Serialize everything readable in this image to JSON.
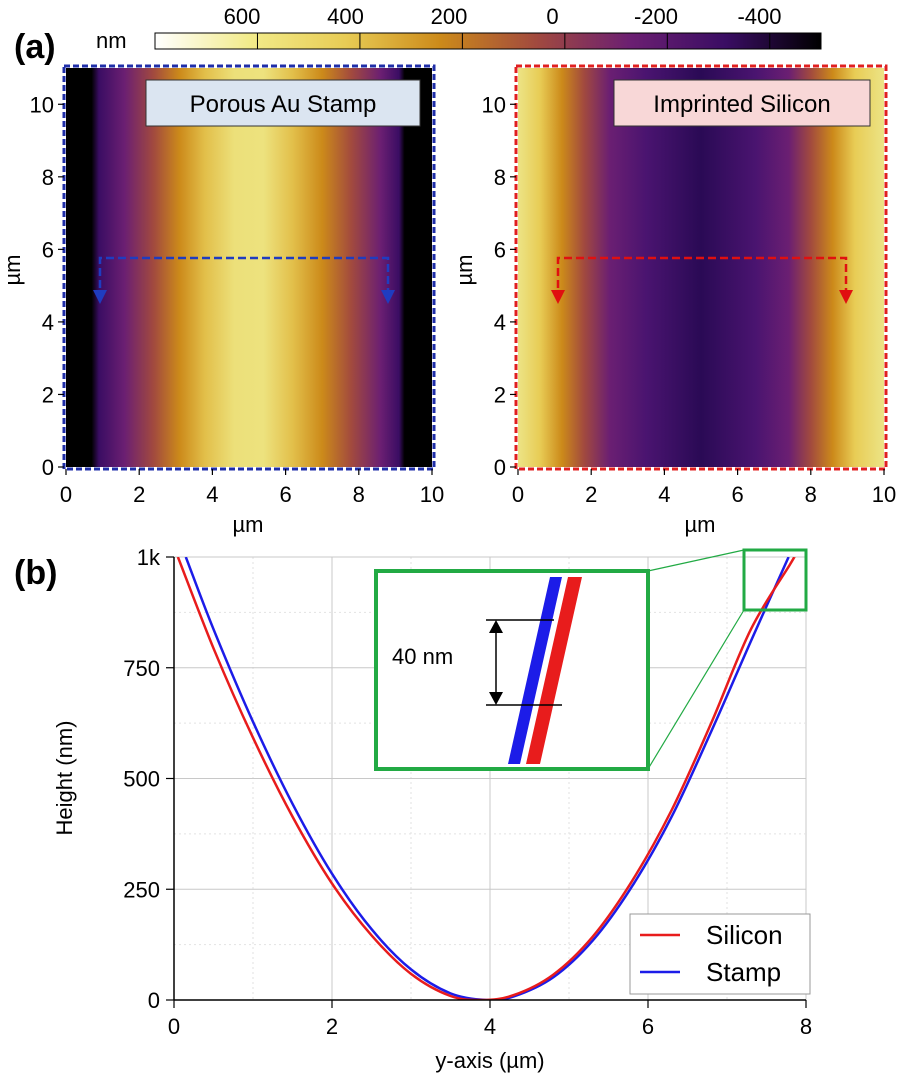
{
  "panel_a": {
    "label": "(a)",
    "colorbar": {
      "unit": "nm",
      "ticks": [
        "600",
        "400",
        "200",
        "0",
        "-200",
        "-400"
      ],
      "colormap": [
        "#ffffff",
        "#f2eb8a",
        "#e8cc55",
        "#cc8a1a",
        "#a24a3e",
        "#6b1f72",
        "#3a0d63",
        "#000000"
      ]
    },
    "maps": [
      {
        "title": "Porous Au Stamp",
        "title_bg": "#dbe5f1",
        "border_color": "#1f2ea8",
        "arrow_color": "#1f3cc0",
        "xlabel": "µm",
        "ylabel": "µm",
        "xticks": [
          "0",
          "2",
          "4",
          "6",
          "8",
          "10"
        ],
        "yticks": [
          "0",
          "2",
          "4",
          "6",
          "8",
          "10"
        ],
        "profile_stops": [
          [
            0.0,
            "#000000"
          ],
          [
            0.07,
            "#000000"
          ],
          [
            0.09,
            "#3a0d63"
          ],
          [
            0.16,
            "#6b1f72"
          ],
          [
            0.24,
            "#a24a3e"
          ],
          [
            0.31,
            "#cc8a1a"
          ],
          [
            0.38,
            "#e2bf4a"
          ],
          [
            0.46,
            "#ece07a"
          ],
          [
            0.54,
            "#ede27e"
          ],
          [
            0.62,
            "#e2bf4a"
          ],
          [
            0.7,
            "#cc8a1a"
          ],
          [
            0.78,
            "#a24a3e"
          ],
          [
            0.86,
            "#6b1f72"
          ],
          [
            0.91,
            "#3a0d63"
          ],
          [
            0.925,
            "#000000"
          ],
          [
            1.0,
            "#000000"
          ]
        ]
      },
      {
        "title": "Imprinted Silicon",
        "title_bg": "#f8d7d7",
        "border_color": "#e02020",
        "arrow_color": "#e01010",
        "xlabel": "µm",
        "ylabel": "µm",
        "xticks": [
          "0",
          "2",
          "4",
          "6",
          "8",
          "10"
        ],
        "yticks": [
          "0",
          "2",
          "4",
          "6",
          "8",
          "10"
        ],
        "profile_stops": [
          [
            0.0,
            "#ece486"
          ],
          [
            0.06,
            "#e8cc55"
          ],
          [
            0.12,
            "#cc8a1a"
          ],
          [
            0.18,
            "#a24a3e"
          ],
          [
            0.25,
            "#6b1f72"
          ],
          [
            0.35,
            "#4a1470"
          ],
          [
            0.5,
            "#2a0a55"
          ],
          [
            0.65,
            "#4a1470"
          ],
          [
            0.74,
            "#6b1f72"
          ],
          [
            0.8,
            "#a24a3e"
          ],
          [
            0.86,
            "#cc8a1a"
          ],
          [
            0.92,
            "#e8cc55"
          ],
          [
            1.0,
            "#ece486"
          ]
        ]
      }
    ]
  },
  "panel_b": {
    "label": "(b)",
    "inset_label": "40 nm",
    "inset_color": "#22aa44"
  },
  "chart_data": {
    "type": "line",
    "xlabel": "y-axis (µm)",
    "ylabel": "Height (nm)",
    "xlim": [
      0,
      8
    ],
    "ylim": [
      0,
      1000
    ],
    "xticks": [
      "0",
      "2",
      "4",
      "6",
      "8"
    ],
    "yticks": [
      "0",
      "250",
      "500",
      "750",
      "1k"
    ],
    "grid": true,
    "legend_position": "bottom-right",
    "series": [
      {
        "name": "Silicon",
        "color": "#e81c1c",
        "x": [
          0.05,
          0.5,
          1.0,
          1.5,
          2.0,
          2.5,
          3.0,
          3.5,
          3.9,
          4.3,
          4.8,
          5.3,
          5.8,
          6.3,
          6.8,
          7.3,
          7.8,
          7.85
        ],
        "y": [
          1000,
          794,
          592,
          414,
          263,
          146,
          59,
          9,
          0,
          11,
          57,
          143,
          269,
          429,
          625,
          836,
          984,
          1000
        ]
      },
      {
        "name": "Stamp",
        "color": "#1c1ce8",
        "x": [
          0.15,
          0.5,
          1.0,
          1.5,
          2.0,
          2.5,
          3.0,
          3.5,
          3.95,
          4.3,
          4.8,
          5.3,
          5.8,
          6.3,
          6.8,
          7.3,
          7.78
        ],
        "y": [
          1000,
          837,
          628,
          443,
          285,
          160,
          69,
          15,
          0,
          8,
          51,
          134,
          257,
          414,
          606,
          809,
          1000
        ]
      }
    ]
  }
}
